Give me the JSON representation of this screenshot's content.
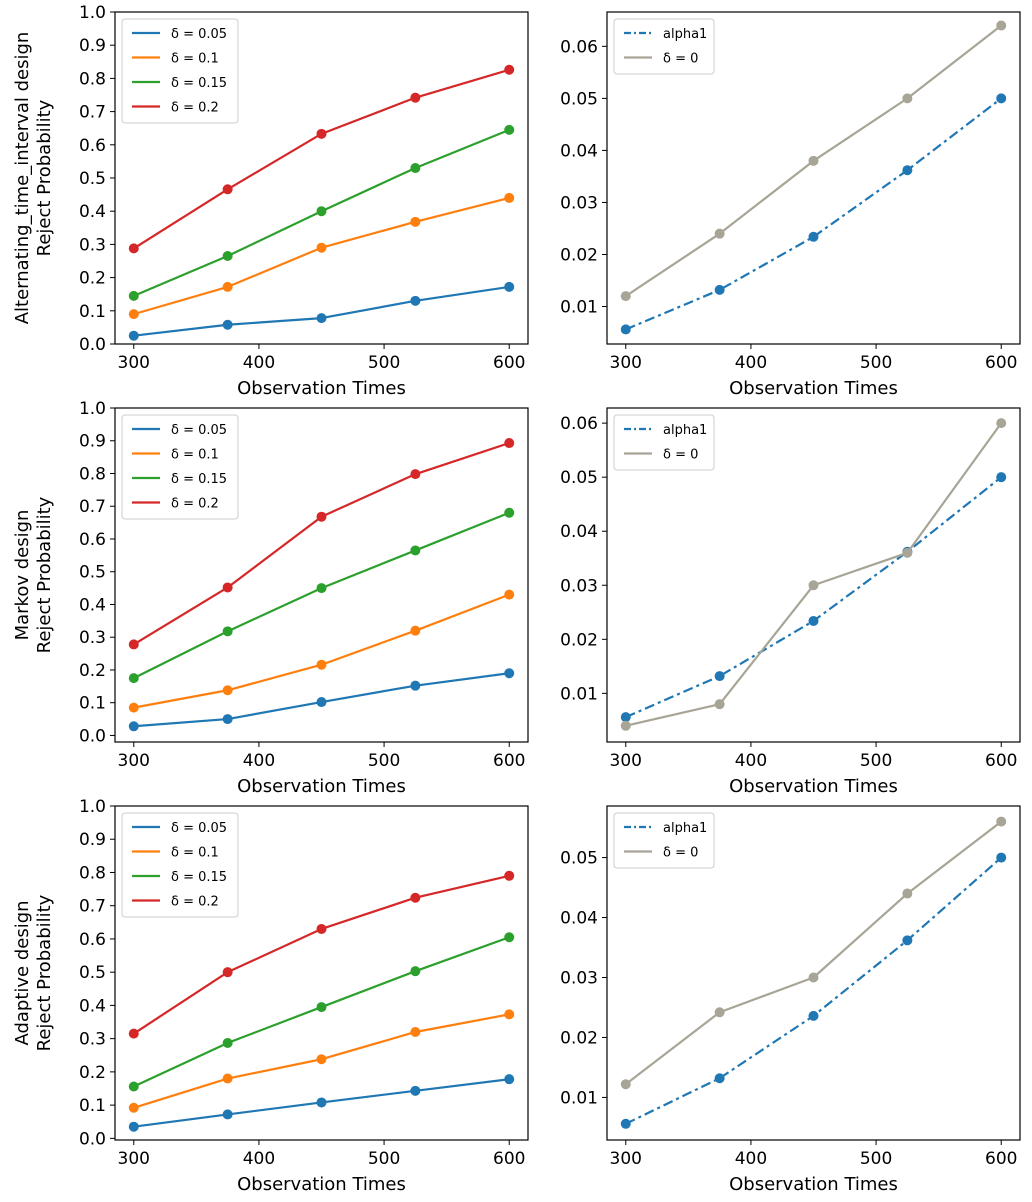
{
  "colors": {
    "d005": "#1f77b4",
    "d01": "#ff7f0e",
    "d015": "#2ca02c",
    "d02": "#d62728",
    "alpha1": "#1f77b4",
    "delta0": "#a8a496"
  },
  "chart_data": [
    {
      "id": "alt-left",
      "type": "line",
      "title": "",
      "xlabel": "Observation Times",
      "ylabel_lines": [
        "Alternating_time_interval design",
        "Reject Probability"
      ],
      "xlim": [
        285,
        615
      ],
      "ylim": [
        0.0,
        1.0
      ],
      "xticks": [
        300,
        400,
        500,
        600
      ],
      "xtick_labels": [
        "300",
        "400",
        "500",
        "600"
      ],
      "yticks": [
        0.0,
        0.1,
        0.2,
        0.3,
        0.4,
        0.5,
        0.6,
        0.7,
        0.8,
        0.9,
        1.0
      ],
      "ytick_labels": [
        "0.0",
        "0.1",
        "0.2",
        "0.3",
        "0.4",
        "0.5",
        "0.6",
        "0.7",
        "0.8",
        "0.9",
        "1.0"
      ],
      "legend_position": "upper-left",
      "x": [
        300,
        375,
        450,
        525,
        600
      ],
      "series": [
        {
          "name": "δ = 0.05",
          "color_key": "d005",
          "style": "solid",
          "values": [
            0.025,
            0.058,
            0.078,
            0.13,
            0.172
          ]
        },
        {
          "name": "δ = 0.1",
          "color_key": "d01",
          "style": "solid",
          "values": [
            0.09,
            0.172,
            0.29,
            0.368,
            0.44
          ]
        },
        {
          "name": "δ = 0.15",
          "color_key": "d015",
          "style": "solid",
          "values": [
            0.145,
            0.265,
            0.4,
            0.53,
            0.645
          ]
        },
        {
          "name": "δ = 0.2",
          "color_key": "d02",
          "style": "solid",
          "values": [
            0.288,
            0.466,
            0.633,
            0.742,
            0.826
          ]
        }
      ]
    },
    {
      "id": "alt-right",
      "type": "line",
      "title": "",
      "xlabel": "Observation Times",
      "ylabel_lines": [],
      "xlim": [
        285,
        615
      ],
      "ylim": [
        0.0028,
        0.0666
      ],
      "xticks": [
        300,
        400,
        500,
        600
      ],
      "xtick_labels": [
        "300",
        "400",
        "500",
        "600"
      ],
      "yticks": [
        0.01,
        0.02,
        0.03,
        0.04,
        0.05,
        0.06
      ],
      "ytick_labels": [
        "0.01",
        "0.02",
        "0.03",
        "0.04",
        "0.05",
        "0.06"
      ],
      "legend_position": "upper-left",
      "x": [
        300,
        375,
        450,
        525,
        600
      ],
      "series": [
        {
          "name": "alpha1",
          "color_key": "alpha1",
          "style": "dashdot",
          "values": [
            0.0056,
            0.0132,
            0.0234,
            0.0362,
            0.05
          ]
        },
        {
          "name": "δ = 0",
          "color_key": "delta0",
          "style": "solid",
          "values": [
            0.012,
            0.024,
            0.038,
            0.05,
            0.064
          ]
        }
      ]
    },
    {
      "id": "markov-left",
      "type": "line",
      "title": "",
      "xlabel": "Observation Times",
      "ylabel_lines": [
        "Markov design",
        "Reject Probability"
      ],
      "xlim": [
        285,
        615
      ],
      "ylim": [
        -0.02,
        1.0
      ],
      "xticks": [
        300,
        400,
        500,
        600
      ],
      "xtick_labels": [
        "300",
        "400",
        "500",
        "600"
      ],
      "yticks": [
        0.0,
        0.1,
        0.2,
        0.3,
        0.4,
        0.5,
        0.6,
        0.7,
        0.8,
        0.9,
        1.0
      ],
      "ytick_labels": [
        "0.0",
        "0.1",
        "0.2",
        "0.3",
        "0.4",
        "0.5",
        "0.6",
        "0.7",
        "0.8",
        "0.9",
        "1.0"
      ],
      "legend_position": "upper-left",
      "x": [
        300,
        375,
        450,
        525,
        600
      ],
      "series": [
        {
          "name": "δ = 0.05",
          "color_key": "d005",
          "style": "solid",
          "values": [
            0.028,
            0.05,
            0.102,
            0.152,
            0.19
          ]
        },
        {
          "name": "δ = 0.1",
          "color_key": "d01",
          "style": "solid",
          "values": [
            0.085,
            0.138,
            0.216,
            0.32,
            0.43
          ]
        },
        {
          "name": "δ = 0.15",
          "color_key": "d015",
          "style": "solid",
          "values": [
            0.175,
            0.318,
            0.45,
            0.565,
            0.68
          ]
        },
        {
          "name": "δ = 0.2",
          "color_key": "d02",
          "style": "solid",
          "values": [
            0.278,
            0.452,
            0.668,
            0.798,
            0.893
          ]
        }
      ]
    },
    {
      "id": "markov-right",
      "type": "line",
      "title": "",
      "xlabel": "Observation Times",
      "ylabel_lines": [],
      "xlim": [
        285,
        615
      ],
      "ylim": [
        0.001,
        0.0628
      ],
      "xticks": [
        300,
        400,
        500,
        600
      ],
      "xtick_labels": [
        "300",
        "400",
        "500",
        "600"
      ],
      "yticks": [
        0.01,
        0.02,
        0.03,
        0.04,
        0.05,
        0.06
      ],
      "ytick_labels": [
        "0.01",
        "0.02",
        "0.03",
        "0.04",
        "0.05",
        "0.06"
      ],
      "legend_position": "upper-left",
      "x": [
        300,
        375,
        450,
        525,
        600
      ],
      "series": [
        {
          "name": "alpha1",
          "color_key": "alpha1",
          "style": "dashdot",
          "values": [
            0.0056,
            0.0132,
            0.0234,
            0.0362,
            0.05
          ]
        },
        {
          "name": "δ = 0",
          "color_key": "delta0",
          "style": "solid",
          "values": [
            0.004,
            0.008,
            0.03,
            0.036,
            0.06
          ]
        }
      ]
    },
    {
      "id": "adaptive-left",
      "type": "line",
      "title": "",
      "xlabel": "Observation Times",
      "ylabel_lines": [
        "Adaptive design",
        "Reject Probability"
      ],
      "xlim": [
        285,
        615
      ],
      "ylim": [
        -0.005,
        1.0
      ],
      "xticks": [
        300,
        400,
        500,
        600
      ],
      "xtick_labels": [
        "300",
        "400",
        "500",
        "600"
      ],
      "yticks": [
        0.0,
        0.1,
        0.2,
        0.3,
        0.4,
        0.5,
        0.6,
        0.7,
        0.8,
        0.9,
        1.0
      ],
      "ytick_labels": [
        "0.0",
        "0.1",
        "0.2",
        "0.3",
        "0.4",
        "0.5",
        "0.6",
        "0.7",
        "0.8",
        "0.9",
        "1.0"
      ],
      "legend_position": "upper-left",
      "x": [
        300,
        375,
        450,
        525,
        600
      ],
      "series": [
        {
          "name": "δ = 0.05",
          "color_key": "d005",
          "style": "solid",
          "values": [
            0.035,
            0.072,
            0.108,
            0.143,
            0.178
          ]
        },
        {
          "name": "δ = 0.1",
          "color_key": "d01",
          "style": "solid",
          "values": [
            0.092,
            0.18,
            0.238,
            0.32,
            0.373
          ]
        },
        {
          "name": "δ = 0.15",
          "color_key": "d015",
          "style": "solid",
          "values": [
            0.156,
            0.287,
            0.395,
            0.503,
            0.605
          ]
        },
        {
          "name": "δ = 0.2",
          "color_key": "d02",
          "style": "solid",
          "values": [
            0.315,
            0.5,
            0.63,
            0.724,
            0.79
          ]
        }
      ]
    },
    {
      "id": "adaptive-right",
      "type": "line",
      "title": "",
      "xlabel": "Observation Times",
      "ylabel_lines": [],
      "xlim": [
        285,
        615
      ],
      "ylim": [
        0.0029,
        0.0586
      ],
      "xticks": [
        300,
        400,
        500,
        600
      ],
      "xtick_labels": [
        "300",
        "400",
        "500",
        "600"
      ],
      "yticks": [
        0.01,
        0.02,
        0.03,
        0.04,
        0.05
      ],
      "ytick_labels": [
        "0.01",
        "0.02",
        "0.03",
        "0.04",
        "0.05"
      ],
      "legend_position": "upper-left",
      "x": [
        300,
        375,
        450,
        525,
        600
      ],
      "series": [
        {
          "name": "alpha1",
          "color_key": "alpha1",
          "style": "dashdot",
          "values": [
            0.0056,
            0.0132,
            0.0236,
            0.0362,
            0.05
          ]
        },
        {
          "name": "δ = 0",
          "color_key": "delta0",
          "style": "solid",
          "values": [
            0.0122,
            0.0242,
            0.03,
            0.044,
            0.056
          ]
        }
      ]
    }
  ]
}
